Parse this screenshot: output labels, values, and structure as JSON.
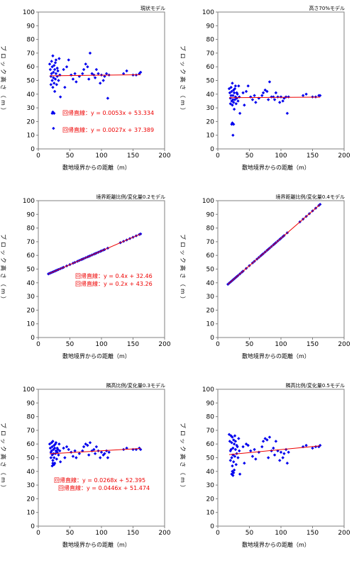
{
  "shared_labels": {
    "xlabel": "敷地境界からの距離（m）",
    "ylabel": "ブロック高さ（m）"
  },
  "chart_data": [
    {
      "type": "scatter",
      "title": "現状モデル",
      "xlabel": "敷地境界からの距離（m）",
      "ylabel": "ブロック高さ（m）",
      "xlim": [
        0,
        200
      ],
      "ylim": [
        0,
        100
      ],
      "xticks": [
        0,
        50,
        100,
        150,
        200
      ],
      "yticks": [
        0,
        10,
        20,
        30,
        40,
        50,
        60,
        70,
        80,
        90,
        100
      ],
      "grid": false,
      "regression_label": "回帰直線：y = 0.0053x + 53.334",
      "regression": {
        "slope": 0.0053,
        "intercept": 53.334,
        "x_range": [
          18,
          162
        ]
      },
      "point_color": "#0000ee",
      "line_color": "#ee0000",
      "x": [
        18,
        19,
        20,
        20,
        21,
        21,
        22,
        22,
        23,
        23,
        24,
        24,
        25,
        25,
        26,
        26,
        27,
        27,
        28,
        28,
        29,
        30,
        30,
        31,
        32,
        33,
        34,
        35,
        40,
        42,
        45,
        48,
        52,
        55,
        58,
        60,
        65,
        70,
        72,
        75,
        78,
        80,
        82,
        85,
        88,
        90,
        92,
        95,
        98,
        100,
        103,
        105,
        108,
        110,
        112,
        135,
        140,
        150,
        155,
        160,
        162,
        22,
        23,
        24,
        25
      ],
      "y": [
        62,
        58,
        53,
        47,
        64,
        55,
        60,
        50,
        68,
        45,
        56,
        52,
        61,
        48,
        58,
        42,
        63,
        51,
        55,
        65,
        47,
        59,
        53,
        57,
        50,
        66,
        54,
        38,
        58,
        45,
        60,
        65,
        54,
        51,
        55,
        49,
        53,
        55,
        58,
        62,
        60,
        51,
        70,
        55,
        54,
        52,
        58,
        55,
        48,
        54,
        50,
        53,
        55,
        37,
        54,
        55,
        57,
        54,
        54,
        55,
        56,
        26,
        27,
        15,
        26
      ]
    },
    {
      "type": "scatter",
      "title": "高さ70%モデル",
      "xlabel": "敷地境界からの距離（m）",
      "ylabel": "ブロック高さ（m）",
      "xlim": [
        0,
        200
      ],
      "ylim": [
        0,
        100
      ],
      "xticks": [
        0,
        50,
        100,
        150,
        200
      ],
      "yticks": [
        0,
        10,
        20,
        30,
        40,
        50,
        60,
        70,
        80,
        90,
        100
      ],
      "grid": false,
      "regression_label": "回帰直線：y = 0.0027x + 37.389",
      "regression": {
        "slope": 0.0027,
        "intercept": 37.389,
        "x_range": [
          18,
          162
        ]
      },
      "point_color": "#0000ee",
      "line_color": "#ee0000",
      "x": [
        18,
        19,
        20,
        20,
        21,
        21,
        22,
        22,
        23,
        23,
        24,
        24,
        25,
        25,
        26,
        26,
        27,
        27,
        28,
        28,
        29,
        30,
        30,
        31,
        32,
        33,
        34,
        35,
        40,
        42,
        45,
        48,
        52,
        55,
        58,
        60,
        65,
        70,
        72,
        75,
        78,
        80,
        82,
        85,
        88,
        90,
        92,
        95,
        98,
        100,
        103,
        105,
        108,
        110,
        112,
        135,
        140,
        150,
        155,
        160,
        162,
        22,
        23,
        24,
        25
      ],
      "y": [
        44,
        41,
        37,
        33,
        45,
        39,
        42,
        35,
        48,
        32,
        39,
        36,
        43,
        34,
        41,
        29,
        44,
        36,
        38,
        46,
        33,
        41,
        37,
        40,
        35,
        46,
        38,
        26,
        41,
        32,
        42,
        46,
        38,
        36,
        39,
        34,
        37,
        39,
        41,
        43,
        42,
        36,
        49,
        38,
        38,
        36,
        41,
        38,
        34,
        38,
        35,
        37,
        38,
        26,
        38,
        39,
        40,
        38,
        38,
        39,
        39,
        18,
        19,
        10,
        18
      ]
    },
    {
      "type": "scatter",
      "title": "境界距離比例/変化量0.2モデル",
      "xlabel": "敷地境界からの距離（m）",
      "ylabel": "ブロック高さ（m）",
      "xlim": [
        0,
        200
      ],
      "ylim": [
        0,
        100
      ],
      "xticks": [
        0,
        50,
        100,
        150,
        200
      ],
      "yticks": [
        0,
        10,
        20,
        30,
        40,
        50,
        60,
        70,
        80,
        90,
        100
      ],
      "grid": false,
      "regression_label": "回帰直線：y = 0.2x + 43.26",
      "regression": {
        "slope": 0.2,
        "intercept": 43.26,
        "x_range": [
          16,
          162
        ]
      },
      "point_color": "#0000ee",
      "line_color": "#ee0000",
      "x": [
        16,
        18,
        20,
        22,
        24,
        26,
        28,
        30,
        32,
        35,
        38,
        40,
        45,
        50,
        55,
        58,
        62,
        65,
        68,
        70,
        72,
        75,
        78,
        80,
        82,
        85,
        88,
        90,
        92,
        95,
        98,
        100,
        103,
        105,
        110,
        130,
        135,
        140,
        145,
        150,
        155,
        160,
        162
      ],
      "y": [
        46.5,
        46.9,
        47.3,
        47.7,
        48.1,
        48.5,
        48.9,
        49.3,
        49.7,
        50.3,
        50.9,
        51.3,
        52.3,
        53.3,
        54.3,
        54.9,
        55.7,
        56.3,
        56.9,
        57.3,
        57.7,
        58.3,
        58.9,
        59.3,
        59.7,
        60.3,
        60.9,
        61.3,
        61.7,
        62.3,
        62.9,
        63.3,
        63.9,
        64.3,
        65.3,
        69.3,
        70.3,
        71.3,
        72.3,
        73.3,
        74.3,
        75.3,
        75.7
      ]
    },
    {
      "type": "scatter",
      "title": "境界距離比例/変化量0.4モデル",
      "xlabel": "敷地境界からの距離（m）",
      "ylabel": "ブロック高さ（m）",
      "xlim": [
        0,
        200
      ],
      "ylim": [
        0,
        100
      ],
      "xticks": [
        0,
        50,
        100,
        150,
        200
      ],
      "yticks": [
        0,
        10,
        20,
        30,
        40,
        50,
        60,
        70,
        80,
        90,
        100
      ],
      "grid": false,
      "regression_label": "回帰直線：y = 0.4x + 32.46",
      "regression": {
        "slope": 0.4,
        "intercept": 32.46,
        "x_range": [
          16,
          162
        ]
      },
      "point_color": "#0000ee",
      "line_color": "#ee0000",
      "x": [
        16,
        18,
        20,
        22,
        24,
        26,
        28,
        30,
        32,
        35,
        38,
        40,
        45,
        50,
        55,
        58,
        62,
        65,
        68,
        70,
        72,
        75,
        78,
        80,
        82,
        85,
        88,
        90,
        92,
        95,
        98,
        100,
        103,
        105,
        110,
        130,
        135,
        140,
        145,
        150,
        155,
        160,
        162
      ],
      "y": [
        38.9,
        39.7,
        40.5,
        41.3,
        42.1,
        42.9,
        43.7,
        44.5,
        45.3,
        46.5,
        47.7,
        48.5,
        50.5,
        52.5,
        54.5,
        55.7,
        57.3,
        58.5,
        59.7,
        60.5,
        61.3,
        62.5,
        63.7,
        64.5,
        65.3,
        66.5,
        67.7,
        68.5,
        69.3,
        70.5,
        71.7,
        72.5,
        73.7,
        74.5,
        76.5,
        84.5,
        86.5,
        88.5,
        90.5,
        92.5,
        94.5,
        96.5,
        97.3
      ]
    },
    {
      "type": "scatter",
      "title": "隣高比例/変化量0.3モデル",
      "xlabel": "敷地境界からの距離（m）",
      "ylabel": "ブロック高さ（m）",
      "xlim": [
        0,
        200
      ],
      "ylim": [
        0,
        100
      ],
      "xticks": [
        0,
        50,
        100,
        150,
        200
      ],
      "yticks": [
        0,
        10,
        20,
        30,
        40,
        50,
        60,
        70,
        80,
        90,
        100
      ],
      "grid": false,
      "regression_label": "回帰直線：y = 0.0268x + 52.395",
      "regression": {
        "slope": 0.0268,
        "intercept": 52.395,
        "x_range": [
          18,
          162
        ]
      },
      "point_color": "#0000ee",
      "line_color": "#ee0000",
      "x": [
        18,
        19,
        20,
        20,
        21,
        21,
        22,
        22,
        23,
        23,
        24,
        24,
        25,
        25,
        26,
        26,
        27,
        27,
        28,
        28,
        29,
        30,
        30,
        31,
        32,
        33,
        34,
        35,
        40,
        42,
        45,
        48,
        52,
        55,
        58,
        60,
        65,
        70,
        72,
        75,
        78,
        80,
        82,
        85,
        88,
        90,
        92,
        95,
        98,
        100,
        103,
        105,
        108,
        110,
        112,
        135,
        140,
        150,
        155,
        160,
        162,
        22,
        23,
        24,
        25
      ],
      "y": [
        60,
        57,
        54,
        50,
        61,
        55,
        58,
        52,
        62,
        48,
        56,
        53,
        59,
        50,
        57,
        46,
        60,
        53,
        55,
        61,
        49,
        57,
        54,
        56,
        52,
        60,
        55,
        47,
        57,
        50,
        58,
        56,
        54,
        51,
        55,
        50,
        53,
        55,
        58,
        60,
        59,
        52,
        61,
        55,
        56,
        53,
        58,
        55,
        50,
        54,
        52,
        53,
        55,
        50,
        54,
        56,
        57,
        56,
        56,
        57,
        56,
        44,
        46,
        45,
        45
      ]
    },
    {
      "type": "scatter",
      "title": "隣高比例/変化量0.5モデル",
      "xlabel": "敷地境界からの距離（m）",
      "ylabel": "ブロック高さ（m）",
      "xlim": [
        0,
        200
      ],
      "ylim": [
        0,
        100
      ],
      "xticks": [
        0,
        50,
        100,
        150,
        200
      ],
      "yticks": [
        0,
        10,
        20,
        30,
        40,
        50,
        60,
        70,
        80,
        90,
        100
      ],
      "grid": false,
      "regression_label": "回帰直線：y = 0.0446x + 51.474",
      "regression": {
        "slope": 0.0446,
        "intercept": 51.474,
        "x_range": [
          18,
          162
        ]
      },
      "point_color": "#0000ee",
      "line_color": "#ee0000",
      "x": [
        18,
        19,
        20,
        20,
        21,
        21,
        22,
        22,
        23,
        23,
        24,
        24,
        25,
        25,
        26,
        26,
        27,
        27,
        28,
        28,
        29,
        30,
        30,
        31,
        32,
        33,
        34,
        35,
        40,
        42,
        45,
        48,
        52,
        55,
        58,
        60,
        65,
        70,
        72,
        75,
        78,
        80,
        82,
        85,
        88,
        90,
        92,
        95,
        98,
        100,
        103,
        105,
        108,
        110,
        112,
        135,
        140,
        150,
        155,
        160,
        162,
        22,
        23,
        24,
        25
      ],
      "y": [
        67,
        62,
        55,
        48,
        66,
        56,
        61,
        50,
        65,
        44,
        57,
        52,
        63,
        47,
        60,
        41,
        66,
        51,
        56,
        62,
        45,
        59,
        53,
        58,
        50,
        64,
        55,
        38,
        58,
        46,
        60,
        59,
        55,
        51,
        56,
        49,
        54,
        58,
        62,
        64,
        63,
        50,
        65,
        55,
        57,
        52,
        62,
        55,
        48,
        54,
        50,
        53,
        56,
        46,
        54,
        58,
        59,
        57,
        58,
        58,
        59,
        38,
        40,
        37,
        39
      ]
    }
  ]
}
